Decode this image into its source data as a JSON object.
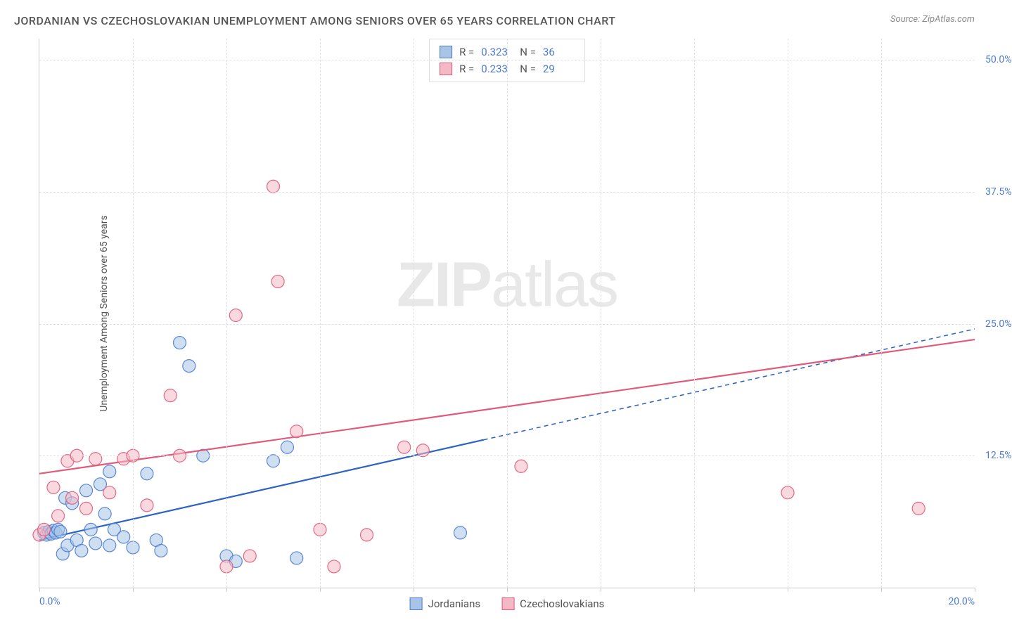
{
  "title": "JORDANIAN VS CZECHOSLOVAKIAN UNEMPLOYMENT AMONG SENIORS OVER 65 YEARS CORRELATION CHART",
  "source": "Source: ZipAtlas.com",
  "y_axis_label": "Unemployment Among Seniors over 65 years",
  "watermark_zip": "ZIP",
  "watermark_atlas": "atlas",
  "x_axis": {
    "min": 0.0,
    "max": 20.0,
    "min_label": "0.0%",
    "max_label": "20.0%",
    "ticks": [
      0,
      2,
      4,
      6,
      8,
      10,
      12,
      14,
      16,
      18,
      20
    ]
  },
  "y_axis": {
    "min": 0.0,
    "max": 52.0,
    "grid": [
      {
        "value": 12.5,
        "label": "12.5%"
      },
      {
        "value": 25.0,
        "label": "25.0%"
      },
      {
        "value": 37.5,
        "label": "37.5%"
      },
      {
        "value": 50.0,
        "label": "50.0%"
      }
    ]
  },
  "series": [
    {
      "name": "Jordanians",
      "fill_color": "#a8c5e8",
      "stroke_color": "#4a7bd0",
      "fill_opacity": 0.55,
      "stroke_opacity": 0.9,
      "marker_radius": 9,
      "stats": {
        "R_label": "R =",
        "R": "0.323",
        "N_label": "N =",
        "N": "36"
      },
      "trend": {
        "solid": {
          "x1": 0,
          "y1": 4.5,
          "x2": 9.5,
          "y2": 14.0
        },
        "dashed": {
          "x1": 9.5,
          "y1": 14.0,
          "x2": 20,
          "y2": 24.5
        },
        "color": "#2b63c4",
        "width": 2.2
      },
      "points": [
        [
          0.1,
          5.2
        ],
        [
          0.15,
          5.0
        ],
        [
          0.2,
          5.3
        ],
        [
          0.25,
          5.1
        ],
        [
          0.3,
          5.4
        ],
        [
          0.35,
          5.2
        ],
        [
          0.4,
          5.5
        ],
        [
          0.45,
          5.3
        ],
        [
          0.5,
          3.2
        ],
        [
          0.55,
          8.5
        ],
        [
          0.6,
          4.0
        ],
        [
          0.7,
          8.0
        ],
        [
          0.8,
          4.5
        ],
        [
          0.9,
          3.5
        ],
        [
          1.0,
          9.2
        ],
        [
          1.1,
          5.5
        ],
        [
          1.2,
          4.2
        ],
        [
          1.3,
          9.8
        ],
        [
          1.4,
          7.0
        ],
        [
          1.5,
          4.0
        ],
        [
          1.5,
          11.0
        ],
        [
          1.6,
          5.5
        ],
        [
          1.8,
          4.8
        ],
        [
          2.0,
          3.8
        ],
        [
          2.3,
          10.8
        ],
        [
          2.5,
          4.5
        ],
        [
          2.6,
          3.5
        ],
        [
          3.0,
          23.2
        ],
        [
          3.2,
          21.0
        ],
        [
          3.5,
          12.5
        ],
        [
          4.0,
          3.0
        ],
        [
          4.2,
          2.5
        ],
        [
          5.0,
          12.0
        ],
        [
          5.3,
          13.3
        ],
        [
          5.5,
          2.8
        ],
        [
          9.0,
          5.2
        ]
      ]
    },
    {
      "name": "Czechoslovakians",
      "fill_color": "#f5b8c5",
      "stroke_color": "#e05a7a",
      "fill_opacity": 0.55,
      "stroke_opacity": 0.9,
      "marker_radius": 9,
      "stats": {
        "R_label": "R =",
        "R": "0.233",
        "N_label": "N =",
        "N": "29"
      },
      "trend": {
        "solid": {
          "x1": 0,
          "y1": 10.8,
          "x2": 20,
          "y2": 23.5
        },
        "dashed": null,
        "color": "#e05a7a",
        "width": 2.2
      },
      "points": [
        [
          0.0,
          5.0
        ],
        [
          0.1,
          5.5
        ],
        [
          0.3,
          9.5
        ],
        [
          0.4,
          6.8
        ],
        [
          0.6,
          12.0
        ],
        [
          0.7,
          8.5
        ],
        [
          0.8,
          12.5
        ],
        [
          1.0,
          7.5
        ],
        [
          1.2,
          12.2
        ],
        [
          1.5,
          9.0
        ],
        [
          1.8,
          12.2
        ],
        [
          2.0,
          12.5
        ],
        [
          2.3,
          7.8
        ],
        [
          2.8,
          18.2
        ],
        [
          3.0,
          12.5
        ],
        [
          4.0,
          2.0
        ],
        [
          4.2,
          25.8
        ],
        [
          4.5,
          3.0
        ],
        [
          5.0,
          38.0
        ],
        [
          5.1,
          29.0
        ],
        [
          5.5,
          14.8
        ],
        [
          6.0,
          5.5
        ],
        [
          6.3,
          2.0
        ],
        [
          7.8,
          13.3
        ],
        [
          8.2,
          13.0
        ],
        [
          10.3,
          11.5
        ],
        [
          16.0,
          9.0
        ],
        [
          18.8,
          7.5
        ],
        [
          7.0,
          5.0
        ]
      ]
    }
  ],
  "colors": {
    "title_color": "#555555",
    "source_color": "#888888",
    "axis_label_color": "#555555",
    "tick_label_color": "#4a7bd0",
    "grid_color": "#e0e0e0",
    "axis_line_color": "#cccccc",
    "watermark_color": "#e8e8e8",
    "background": "#ffffff"
  },
  "typography": {
    "title_fontsize": 16,
    "source_fontsize": 13,
    "tick_fontsize": 14,
    "axis_label_fontsize": 14,
    "legend_fontsize": 15,
    "watermark_fontsize": 90
  }
}
